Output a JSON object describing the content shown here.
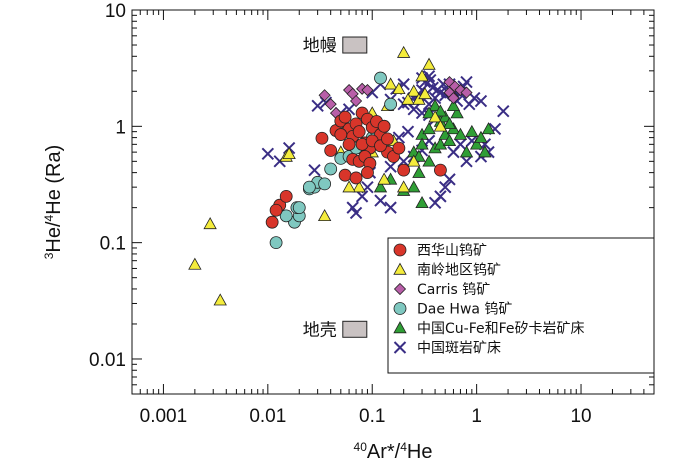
{
  "chart_data": {
    "type": "scatter",
    "x_scale": "log",
    "y_scale": "log",
    "xlim": [
      0.0005,
      50
    ],
    "ylim": [
      0.005,
      10
    ],
    "x_ticks": [
      0.001,
      0.01,
      0.1,
      1,
      10
    ],
    "x_tick_labels": [
      "0.001",
      "0.01",
      "0.1",
      "1",
      "10"
    ],
    "y_ticks": [
      0.01,
      0.1,
      1,
      10
    ],
    "y_tick_labels": [
      "0.01",
      "0.1",
      "1",
      "10"
    ],
    "xlabel": {
      "sup": "40",
      "text": "Ar*/",
      "sup2": "4",
      "text2": "He"
    },
    "ylabel": {
      "sup": "3",
      "text": "He/",
      "sup2": "4",
      "text2": "He (Ra)"
    },
    "annotations": [
      {
        "label": "地幔",
        "x": 0.05,
        "y": 5.0,
        "box": true
      },
      {
        "label": "地壳",
        "x": 0.05,
        "y": 0.018,
        "box": true
      }
    ],
    "legend_position": "bottom-right",
    "series": [
      {
        "name": "西华山钨矿",
        "marker": "circle",
        "color": "#d8352a",
        "points": [
          [
            0.011,
            0.15
          ],
          [
            0.013,
            0.21
          ],
          [
            0.015,
            0.25
          ],
          [
            0.012,
            0.19
          ],
          [
            0.033,
            0.79
          ],
          [
            0.045,
            0.92
          ],
          [
            0.05,
            1.11
          ],
          [
            0.055,
            1.2
          ],
          [
            0.06,
            0.95
          ],
          [
            0.065,
            0.82
          ],
          [
            0.07,
            1.05
          ],
          [
            0.075,
            0.9
          ],
          [
            0.08,
            1.3
          ],
          [
            0.085,
            0.72
          ],
          [
            0.09,
            1.15
          ],
          [
            0.095,
            0.65
          ],
          [
            0.1,
            0.98
          ],
          [
            0.11,
            1.1
          ],
          [
            0.12,
            0.85
          ],
          [
            0.13,
            1.0
          ],
          [
            0.14,
            0.6
          ],
          [
            0.065,
            0.52
          ],
          [
            0.075,
            0.5
          ],
          [
            0.085,
            0.55
          ],
          [
            0.095,
            0.48
          ],
          [
            0.16,
            0.55
          ],
          [
            0.18,
            0.65
          ],
          [
            0.2,
            0.42
          ],
          [
            0.055,
            0.38
          ],
          [
            0.07,
            0.36
          ],
          [
            0.06,
            0.7
          ],
          [
            0.08,
            0.7
          ],
          [
            0.1,
            0.75
          ],
          [
            0.12,
            0.68
          ],
          [
            0.14,
            0.78
          ],
          [
            0.04,
            0.62
          ],
          [
            0.45,
            0.42
          ],
          [
            0.09,
            0.4
          ],
          [
            0.05,
            0.85
          ]
        ]
      },
      {
        "name": "南岭地区钨矿",
        "marker": "triangle",
        "color": "#f4ec3c",
        "points": [
          [
            0.002,
            0.065
          ],
          [
            0.0028,
            0.145
          ],
          [
            0.0035,
            0.032
          ],
          [
            0.015,
            0.55
          ],
          [
            0.016,
            0.58
          ],
          [
            0.2,
            4.3
          ],
          [
            0.25,
            2.0
          ],
          [
            0.3,
            2.7
          ],
          [
            0.35,
            3.4
          ],
          [
            0.22,
            1.7
          ],
          [
            0.15,
            2.3
          ],
          [
            0.18,
            2.1
          ],
          [
            0.14,
            1.5
          ],
          [
            0.1,
            1.3
          ],
          [
            0.28,
            1.7
          ],
          [
            0.32,
            1.9
          ],
          [
            0.12,
            0.7
          ],
          [
            0.16,
            0.75
          ],
          [
            0.1,
            0.6
          ],
          [
            0.13,
            0.35
          ],
          [
            0.075,
            0.3
          ],
          [
            0.06,
            0.3
          ],
          [
            0.035,
            0.17
          ],
          [
            0.2,
            0.3
          ],
          [
            0.25,
            0.5
          ],
          [
            0.4,
            1.2
          ],
          [
            0.45,
            1.0
          ],
          [
            0.08,
            0.55
          ],
          [
            0.05,
            0.6
          ],
          [
            0.055,
            0.95
          ]
        ]
      },
      {
        "name": "Carris 钨矿",
        "marker": "diamond",
        "color": "#b85ea8",
        "points": [
          [
            0.035,
            1.85
          ],
          [
            0.04,
            1.55
          ],
          [
            0.045,
            1.3
          ],
          [
            0.06,
            2.05
          ],
          [
            0.065,
            1.9
          ],
          [
            0.07,
            1.65
          ],
          [
            0.08,
            2.1
          ],
          [
            0.09,
            2.05
          ],
          [
            0.55,
            2.4
          ],
          [
            0.58,
            1.85
          ],
          [
            0.62,
            2.2
          ],
          [
            0.7,
            2.05
          ],
          [
            0.8,
            1.95
          ],
          [
            0.55,
            1.95
          ],
          [
            0.6,
            1.75
          ]
        ]
      },
      {
        "name": "Dae Hwa 钨矿",
        "marker": "circle",
        "color": "#7fc8c0",
        "points": [
          [
            0.012,
            0.1
          ],
          [
            0.018,
            0.15
          ],
          [
            0.02,
            0.17
          ],
          [
            0.019,
            0.2
          ],
          [
            0.025,
            0.29
          ],
          [
            0.028,
            0.3
          ],
          [
            0.03,
            0.33
          ],
          [
            0.04,
            0.43
          ],
          [
            0.05,
            0.53
          ],
          [
            0.06,
            0.55
          ],
          [
            0.07,
            0.65
          ],
          [
            0.1,
            0.8
          ],
          [
            0.11,
            0.9
          ],
          [
            0.13,
            1.0
          ],
          [
            0.12,
            2.6
          ],
          [
            0.15,
            1.55
          ],
          [
            0.02,
            0.2
          ],
          [
            0.025,
            0.3
          ],
          [
            0.015,
            0.17
          ],
          [
            0.035,
            0.32
          ]
        ]
      },
      {
        "name": "中国Cu-Fe和Fe矽卡岩矿床",
        "marker": "triangle",
        "color": "#2f9e35",
        "points": [
          [
            0.12,
            0.3
          ],
          [
            0.15,
            0.35
          ],
          [
            0.2,
            0.28
          ],
          [
            0.25,
            0.3
          ],
          [
            0.28,
            0.4
          ],
          [
            0.3,
            0.22
          ],
          [
            0.35,
            0.5
          ],
          [
            0.4,
            0.65
          ],
          [
            0.45,
            0.7
          ],
          [
            0.5,
            0.85
          ],
          [
            0.55,
            0.75
          ],
          [
            0.6,
            0.95
          ],
          [
            0.7,
            0.85
          ],
          [
            0.8,
            0.6
          ],
          [
            0.9,
            0.9
          ],
          [
            1.0,
            0.7
          ],
          [
            1.1,
            0.8
          ],
          [
            1.2,
            0.6
          ],
          [
            1.3,
            0.95
          ],
          [
            0.3,
            0.85
          ],
          [
            0.35,
            0.95
          ],
          [
            0.45,
            1.1
          ],
          [
            0.5,
            1.2
          ],
          [
            0.55,
            1.05
          ],
          [
            0.65,
            1.3
          ],
          [
            0.4,
            1.5
          ],
          [
            0.45,
            1.35
          ],
          [
            0.3,
            0.7
          ],
          [
            0.25,
            0.6
          ],
          [
            0.6,
            1.5
          ],
          [
            0.35,
            1.3
          ],
          [
            0.28,
            0.55
          ]
        ]
      },
      {
        "name": "中国斑岩矿床",
        "marker": "x",
        "color": "#3a2e85",
        "points": [
          [
            0.01,
            0.58
          ],
          [
            0.013,
            0.5
          ],
          [
            0.016,
            0.65
          ],
          [
            0.028,
            0.42
          ],
          [
            0.03,
            1.5
          ],
          [
            0.036,
            1.6
          ],
          [
            0.05,
            1.3
          ],
          [
            0.06,
            1.4
          ],
          [
            0.065,
            0.2
          ],
          [
            0.07,
            0.18
          ],
          [
            0.08,
            0.25
          ],
          [
            0.09,
            0.3
          ],
          [
            0.095,
            0.4
          ],
          [
            0.12,
            0.23
          ],
          [
            0.15,
            0.2
          ],
          [
            0.15,
            0.45
          ],
          [
            0.2,
            0.5
          ],
          [
            0.25,
            0.55
          ],
          [
            0.3,
            0.62
          ],
          [
            0.35,
            0.75
          ],
          [
            0.4,
            0.22
          ],
          [
            0.45,
            0.25
          ],
          [
            0.5,
            0.3
          ],
          [
            0.55,
            0.35
          ],
          [
            0.6,
            0.6
          ],
          [
            0.7,
            0.7
          ],
          [
            0.8,
            0.5
          ],
          [
            0.9,
            0.75
          ],
          [
            1.1,
            0.55
          ],
          [
            1.2,
            0.7
          ],
          [
            1.3,
            0.6
          ],
          [
            1.5,
            0.95
          ],
          [
            1.8,
            1.35
          ],
          [
            0.17,
            2.1
          ],
          [
            0.2,
            2.3
          ],
          [
            0.22,
            1.6
          ],
          [
            0.25,
            1.75
          ],
          [
            0.28,
            1.85
          ],
          [
            0.3,
            2.05
          ],
          [
            0.32,
            2.4
          ],
          [
            0.33,
            1.9
          ],
          [
            0.35,
            1.55
          ],
          [
            0.36,
            2.5
          ],
          [
            0.38,
            2.15
          ],
          [
            0.4,
            1.75
          ],
          [
            0.42,
            2.05
          ],
          [
            0.45,
            1.95
          ],
          [
            0.48,
            2.3
          ],
          [
            0.5,
            1.85
          ],
          [
            0.52,
            2.0
          ],
          [
            0.55,
            2.3
          ],
          [
            0.6,
            2.05
          ],
          [
            0.65,
            1.65
          ],
          [
            0.7,
            1.9
          ],
          [
            0.75,
            2.2
          ],
          [
            0.8,
            2.4
          ],
          [
            0.85,
            1.55
          ],
          [
            0.95,
            1.75
          ],
          [
            1.1,
            1.65
          ],
          [
            0.25,
            1.4
          ],
          [
            0.3,
            1.3
          ],
          [
            0.35,
            1.25
          ],
          [
            0.4,
            1.15
          ],
          [
            0.2,
            1.55
          ],
          [
            0.15,
            1.7
          ],
          [
            0.1,
            1.95
          ],
          [
            0.12,
            2.3
          ],
          [
            0.3,
            2.6
          ],
          [
            0.35,
            2.7
          ],
          [
            0.18,
            0.8
          ],
          [
            0.22,
            0.9
          ]
        ]
      }
    ]
  }
}
